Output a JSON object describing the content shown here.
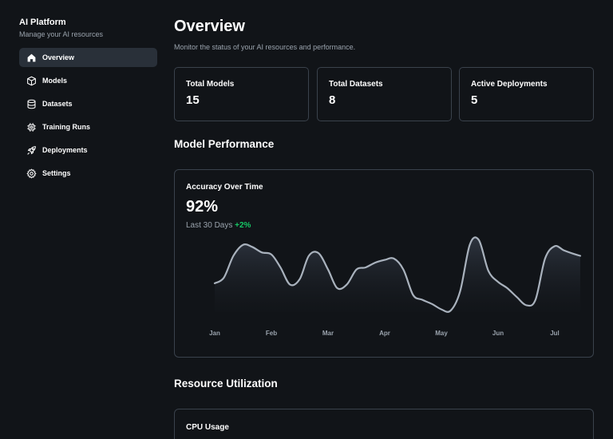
{
  "sidebar": {
    "title": "AI Platform",
    "subtitle": "Manage your AI resources",
    "items": [
      {
        "label": "Overview",
        "icon": "home-icon",
        "active": true
      },
      {
        "label": "Models",
        "icon": "cube-icon",
        "active": false
      },
      {
        "label": "Datasets",
        "icon": "database-icon",
        "active": false
      },
      {
        "label": "Training Runs",
        "icon": "cpu-chip-icon",
        "active": false
      },
      {
        "label": "Deployments",
        "icon": "rocket-icon",
        "active": false
      },
      {
        "label": "Settings",
        "icon": "gear-icon",
        "active": false
      }
    ]
  },
  "header": {
    "title": "Overview",
    "subtitle": "Monitor the status of your AI resources and performance."
  },
  "stats": [
    {
      "label": "Total Models",
      "value": "15"
    },
    {
      "label": "Total Datasets",
      "value": "8"
    },
    {
      "label": "Active Deployments",
      "value": "5"
    }
  ],
  "performance": {
    "section_title": "Model Performance",
    "card_title": "Accuracy Over Time",
    "value": "92%",
    "period": "Last 30 Days",
    "change": "+2%",
    "change_color": "#16c765"
  },
  "chart_data": {
    "type": "area",
    "categories": [
      "Jan",
      "Feb",
      "Mar",
      "Apr",
      "May",
      "Jun",
      "Jul"
    ],
    "x": [
      0,
      0.16,
      0.33,
      0.5,
      0.66,
      0.83,
      1.0,
      1.16,
      1.33,
      1.5,
      1.66,
      1.83,
      2.0,
      2.16,
      2.33,
      2.5,
      2.66,
      2.83,
      3.0,
      3.16,
      3.33,
      3.5,
      3.66,
      3.83,
      4.0,
      4.16,
      4.33,
      4.5,
      4.66,
      4.83,
      5.0,
      5.16,
      5.33,
      5.5,
      5.66,
      5.83,
      6.0,
      6.16,
      6.33,
      6.5
    ],
    "values": [
      0.42,
      0.5,
      0.82,
      0.98,
      0.95,
      0.87,
      0.84,
      0.65,
      0.4,
      0.48,
      0.82,
      0.86,
      0.62,
      0.35,
      0.4,
      0.62,
      0.65,
      0.72,
      0.76,
      0.78,
      0.62,
      0.25,
      0.18,
      0.12,
      0.04,
      0.02,
      0.3,
      0.98,
      1.05,
      0.6,
      0.44,
      0.35,
      0.22,
      0.1,
      0.18,
      0.78,
      0.96,
      0.9,
      0.85,
      0.82
    ],
    "line_color": "#a9b2bd",
    "grid": false,
    "legend": "none"
  },
  "resources": {
    "section_title": "Resource Utilization",
    "cpu_title": "CPU Usage"
  }
}
